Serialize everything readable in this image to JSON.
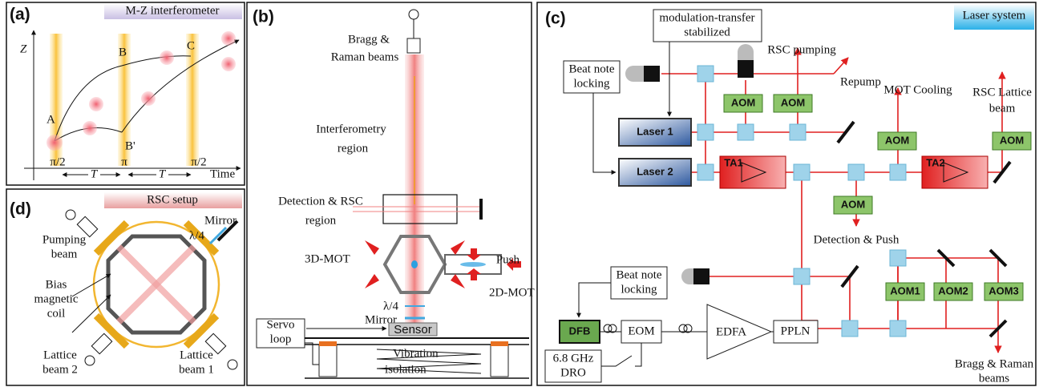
{
  "panel_a": {
    "label": "(a)",
    "title": "M-Z interferometer",
    "axis_z": "Z",
    "axis_time": "Time",
    "points": [
      "A",
      "B",
      "C",
      "B'"
    ],
    "pulses": [
      "π/2",
      "π",
      "π/2"
    ],
    "intervals": [
      "T",
      "T"
    ]
  },
  "panel_b": {
    "label": "(b)",
    "beams": [
      "Bragg &",
      "Raman beams"
    ],
    "interferometry": [
      "Interferometry",
      "region"
    ],
    "detection": [
      "Detection & RSC",
      "region"
    ],
    "mot3d": "3D-MOT",
    "push": "Push",
    "mot2d": "2D-MOT",
    "waveplate": "λ/4",
    "mirror": "Mirror",
    "sensor": "Sensor",
    "servo": [
      "Servo",
      "loop"
    ],
    "isolation": [
      "Vibration",
      "isolation"
    ]
  },
  "panel_c": {
    "label": "(c)",
    "title": "Laser system",
    "modulation": [
      "modulation-transfer",
      "stabilized"
    ],
    "rsc_pumping": "RSC pumping",
    "repump": "Repump",
    "mot_cooling": "MOT Cooling",
    "rsc_lattice": [
      "RSC Lattice",
      "beam"
    ],
    "beat_note_1": [
      "Beat note",
      "locking"
    ],
    "laser1": "Laser 1",
    "laser2": "Laser 2",
    "aoms": [
      "AOM",
      "AOM",
      "AOM",
      "AOM",
      "AOM",
      "AOM1",
      "AOM2",
      "AOM3"
    ],
    "amplifiers": [
      "TA1",
      "TA2"
    ],
    "detection_push": "Detection & Push",
    "beat_note_2": [
      "Beat note",
      "locking"
    ],
    "dfb": "DFB",
    "eom": "EOM",
    "edfa": "EDFA",
    "ppln": "PPLN",
    "dro": [
      "6.8 GHz",
      "DRO"
    ],
    "bragg_raman": [
      "Bragg & Raman",
      "beams"
    ]
  },
  "panel_d": {
    "label": "(d)",
    "title": "RSC setup",
    "mirror": "Mirror",
    "waveplate": "λ/4",
    "pumping": [
      "Pumping",
      "beam"
    ],
    "coil": [
      "Bias",
      "magnetic",
      "coil"
    ],
    "lattice2": [
      "Lattice",
      "beam 2"
    ],
    "lattice1": [
      "Lattice",
      "beam 1"
    ]
  }
}
